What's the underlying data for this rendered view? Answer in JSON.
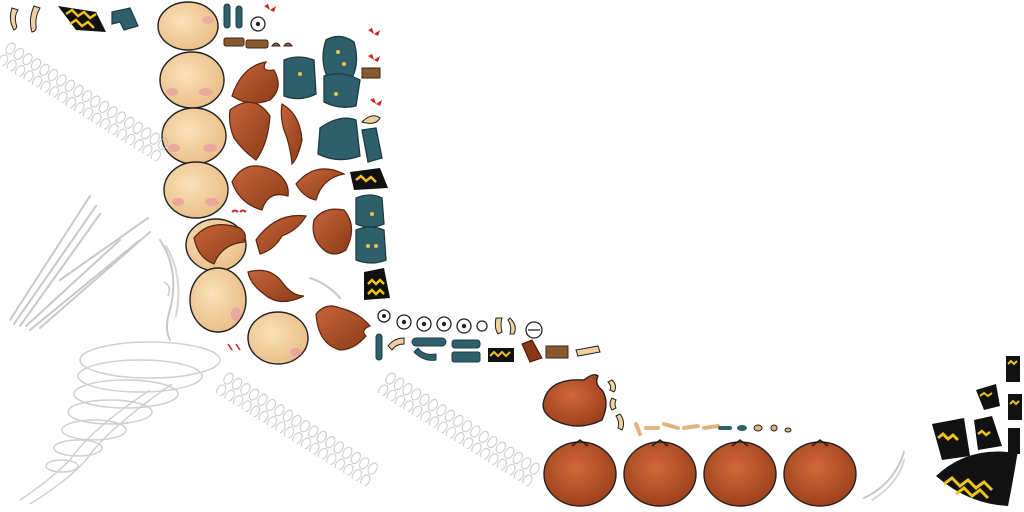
{
  "atlas": {
    "background": "#ffffff",
    "palette": {
      "skin": "#f2cf9e",
      "skin_shade": "#e3b37c",
      "blush": "#e8a0a0",
      "hair": "#b8552a",
      "hair_dark": "#7a3416",
      "pumpkin": "#c2552a",
      "pumpkin_dark": "#8a3818",
      "cloth": "#2f5f6a",
      "cloth_dark": "#1b3c44",
      "hat_black": "#111111",
      "hat_yellow": "#f0c21c",
      "wood": "#8a5a2e",
      "ribbon": "#cc2222",
      "effect_grey": "#c8c8c8",
      "outline": "#222222"
    },
    "groups": [
      "face-sprites",
      "hair-sprites",
      "cloth-sprites",
      "limb-sprites",
      "eye-sprites",
      "hat-sprites",
      "pumpkin-sprites",
      "spring-sprites",
      "tornado-sprite",
      "streak-sprites"
    ]
  }
}
